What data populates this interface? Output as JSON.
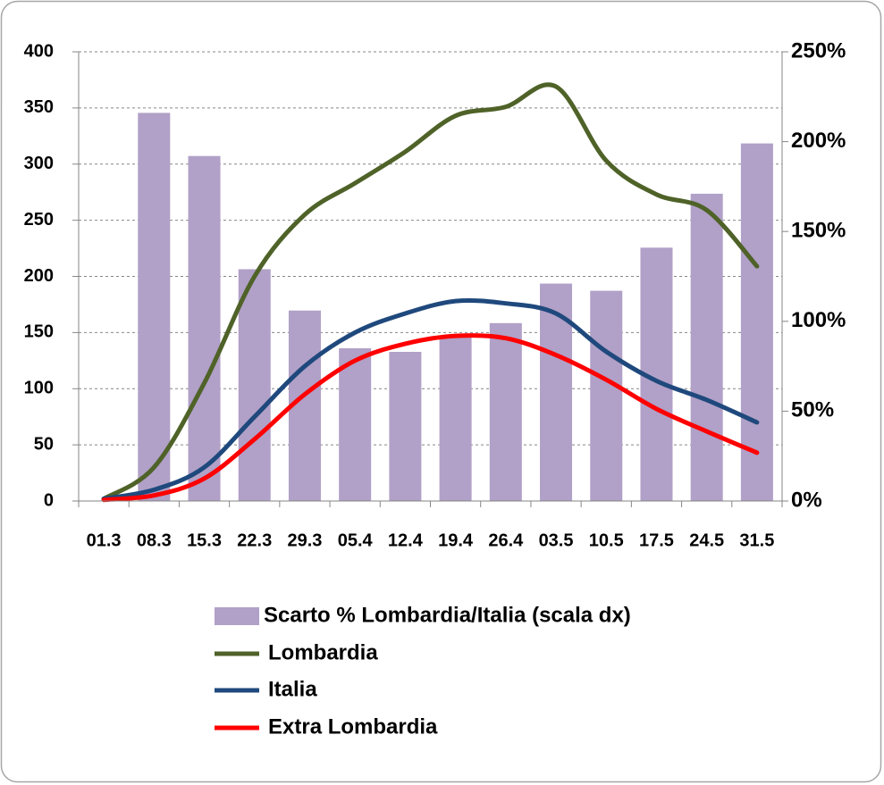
{
  "chart_data": {
    "type": "bar-line",
    "categories": [
      "01.3",
      "08.3",
      "15.3",
      "22.3",
      "29.3",
      "05.4",
      "12.4",
      "19.4",
      "26.4",
      "03.5",
      "10.5",
      "17.5",
      "24.5",
      "31.5"
    ],
    "series": [
      {
        "name": "Scarto % Lombardia/Italia (scala dx)",
        "type": "bar",
        "axis": "y2",
        "color": "#b1a0c7",
        "values": [
          null,
          216,
          192,
          129,
          106,
          85,
          83,
          92,
          99,
          121,
          117,
          141,
          171,
          199
        ]
      },
      {
        "name": "Lombardia",
        "type": "line",
        "color": "#4f6228",
        "values": [
          2,
          30,
          105,
          200,
          255,
          283,
          311,
          343,
          351,
          369,
          303,
          273,
          259,
          209
        ]
      },
      {
        "name": "Italia",
        "type": "line",
        "color": "#1f497d",
        "values": [
          2,
          10,
          30,
          75,
          120,
          150,
          167,
          178,
          176,
          167,
          133,
          107,
          90,
          70
        ]
      },
      {
        "name": "Extra Lombardia",
        "type": "line",
        "color": "#ff0000",
        "values": [
          1,
          5,
          20,
          55,
          95,
          125,
          140,
          147,
          145,
          130,
          108,
          82,
          62,
          43
        ]
      }
    ],
    "ylim": [
      0,
      400
    ],
    "yticks": [
      0,
      50,
      100,
      150,
      200,
      250,
      300,
      350,
      400
    ],
    "y2lim": [
      0,
      250
    ],
    "y2ticks": [
      {
        "value": 0,
        "label": "0%"
      },
      {
        "value": 50,
        "label": "50%"
      },
      {
        "value": 100,
        "label": "100%"
      },
      {
        "value": 150,
        "label": "150%"
      },
      {
        "value": 200,
        "label": "200%"
      },
      {
        "value": 250,
        "label": "250%"
      }
    ],
    "grid": true
  }
}
